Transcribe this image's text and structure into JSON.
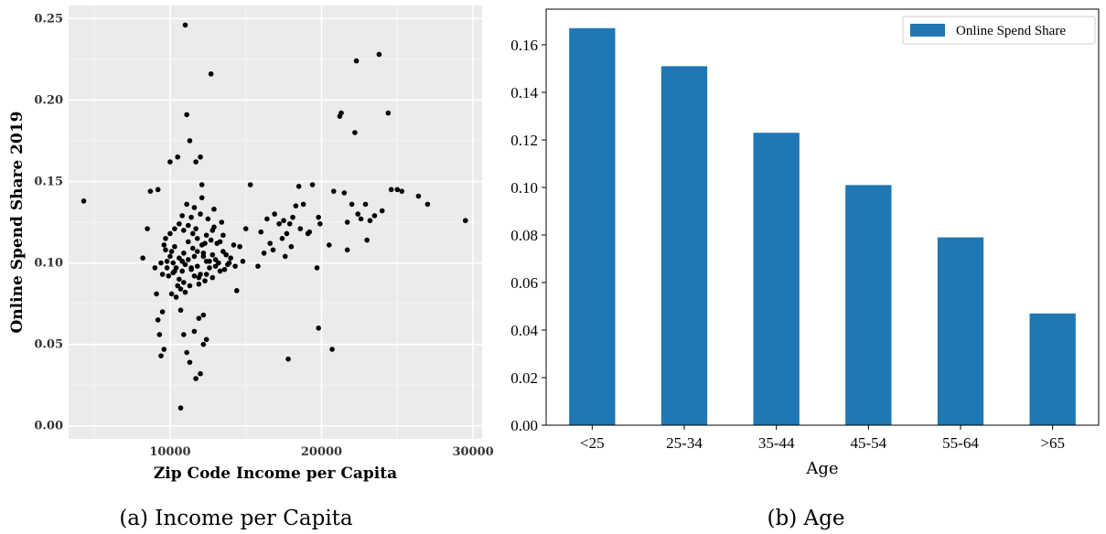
{
  "chart_data": [
    {
      "type": "scatter",
      "caption": "(a) Income per Capita",
      "xlabel": "Zip Code Income per Capita",
      "ylabel": "Online Spend Share 2019",
      "xlim": [
        3300,
        30600
      ],
      "ylim": [
        -0.008,
        0.258
      ],
      "xticks": [
        10000,
        20000,
        30000
      ],
      "yticks": [
        0.0,
        0.05,
        0.1,
        0.15,
        0.2,
        0.25
      ],
      "ytick_labels": [
        "0.00",
        "0.05",
        "0.10",
        "0.15",
        "0.20",
        "0.25"
      ],
      "grid": true,
      "point_color": "#000000",
      "panel_color": "#EBEBEB",
      "points": [
        [
          4300,
          0.138
        ],
        [
          8200,
          0.103
        ],
        [
          8500,
          0.121
        ],
        [
          8700,
          0.144
        ],
        [
          9200,
          0.145
        ],
        [
          9000,
          0.097
        ],
        [
          9100,
          0.081
        ],
        [
          9200,
          0.065
        ],
        [
          9300,
          0.056
        ],
        [
          9400,
          0.043
        ],
        [
          9500,
          0.07
        ],
        [
          9600,
          0.047
        ],
        [
          9400,
          0.1
        ],
        [
          9500,
          0.093
        ],
        [
          9600,
          0.111
        ],
        [
          9700,
          0.108
        ],
        [
          9800,
          0.097
        ],
        [
          9900,
          0.092
        ],
        [
          10000,
          0.104
        ],
        [
          10100,
          0.081
        ],
        [
          10200,
          0.094
        ],
        [
          10300,
          0.11
        ],
        [
          10400,
          0.079
        ],
        [
          10500,
          0.086
        ],
        [
          10000,
          0.162
        ],
        [
          10500,
          0.165
        ],
        [
          10700,
          0.071
        ],
        [
          10800,
          0.101
        ],
        [
          10800,
          0.129
        ],
        [
          10900,
          0.106
        ],
        [
          11000,
          0.246
        ],
        [
          11100,
          0.191
        ],
        [
          11200,
          0.123
        ],
        [
          11300,
          0.175
        ],
        [
          11400,
          0.097
        ],
        [
          11500,
          0.118
        ],
        [
          11600,
          0.134
        ],
        [
          11700,
          0.162
        ],
        [
          11800,
          0.107
        ],
        [
          11900,
          0.091
        ],
        [
          12000,
          0.165
        ],
        [
          12000,
          0.13
        ],
        [
          12100,
          0.148
        ],
        [
          12200,
          0.104
        ],
        [
          12300,
          0.112
        ],
        [
          12400,
          0.093
        ],
        [
          12600,
          0.101
        ],
        [
          12700,
          0.216
        ],
        [
          12800,
          0.12
        ],
        [
          12900,
          0.133
        ],
        [
          13000,
          0.098
        ],
        [
          13200,
          0.1
        ],
        [
          13400,
          0.125
        ],
        [
          13500,
          0.107
        ],
        [
          13600,
          0.096
        ],
        [
          13800,
          0.099
        ],
        [
          14000,
          0.103
        ],
        [
          14200,
          0.111
        ],
        [
          14400,
          0.083
        ],
        [
          14600,
          0.11
        ],
        [
          14800,
          0.101
        ],
        [
          15000,
          0.121
        ],
        [
          15300,
          0.148
        ],
        [
          15800,
          0.098
        ],
        [
          16000,
          0.119
        ],
        [
          16400,
          0.127
        ],
        [
          16600,
          0.112
        ],
        [
          16900,
          0.13
        ],
        [
          17200,
          0.124
        ],
        [
          17500,
          0.126
        ],
        [
          17700,
          0.118
        ],
        [
          17900,
          0.124
        ],
        [
          18100,
          0.128
        ],
        [
          18300,
          0.135
        ],
        [
          18500,
          0.147
        ],
        [
          18800,
          0.136
        ],
        [
          19100,
          0.118
        ],
        [
          19400,
          0.148
        ],
        [
          19700,
          0.097
        ],
        [
          19800,
          0.128
        ],
        [
          19800,
          0.06
        ],
        [
          19900,
          0.124
        ],
        [
          17800,
          0.041
        ],
        [
          12200,
          0.05
        ],
        [
          12000,
          0.032
        ],
        [
          11700,
          0.029
        ],
        [
          10700,
          0.011
        ],
        [
          10900,
          0.056
        ],
        [
          11100,
          0.045
        ],
        [
          11300,
          0.039
        ],
        [
          11600,
          0.058
        ],
        [
          11900,
          0.066
        ],
        [
          12200,
          0.068
        ],
        [
          12400,
          0.053
        ],
        [
          20500,
          0.111
        ],
        [
          20700,
          0.047
        ],
        [
          20800,
          0.144
        ],
        [
          21200,
          0.19
        ],
        [
          21300,
          0.192
        ],
        [
          21500,
          0.143
        ],
        [
          21700,
          0.125
        ],
        [
          21700,
          0.108
        ],
        [
          22000,
          0.136
        ],
        [
          22200,
          0.18
        ],
        [
          22300,
          0.224
        ],
        [
          22400,
          0.13
        ],
        [
          22600,
          0.127
        ],
        [
          22900,
          0.136
        ],
        [
          23000,
          0.114
        ],
        [
          23200,
          0.126
        ],
        [
          23500,
          0.129
        ],
        [
          23800,
          0.228
        ],
        [
          24000,
          0.132
        ],
        [
          24400,
          0.192
        ],
        [
          24600,
          0.145
        ],
        [
          25000,
          0.145
        ],
        [
          25300,
          0.144
        ],
        [
          26400,
          0.141
        ],
        [
          27000,
          0.136
        ],
        [
          29500,
          0.126
        ],
        [
          10200,
          0.1
        ],
        [
          10400,
          0.097
        ],
        [
          10600,
          0.103
        ],
        [
          10800,
          0.095
        ],
        [
          11000,
          0.099
        ],
        [
          11200,
          0.102
        ],
        [
          11400,
          0.096
        ],
        [
          11600,
          0.104
        ],
        [
          11800,
          0.098
        ],
        [
          12000,
          0.093
        ],
        [
          12200,
          0.106
        ],
        [
          12400,
          0.101
        ],
        [
          12600,
          0.097
        ],
        [
          12800,
          0.105
        ],
        [
          13000,
          0.102
        ],
        [
          9800,
          0.101
        ],
        [
          10100,
          0.107
        ],
        [
          10300,
          0.095
        ],
        [
          10600,
          0.09
        ],
        [
          10900,
          0.088
        ],
        [
          11200,
          0.113
        ],
        [
          11500,
          0.109
        ],
        [
          11800,
          0.115
        ],
        [
          12100,
          0.111
        ],
        [
          12400,
          0.117
        ],
        [
          12700,
          0.114
        ],
        [
          13100,
          0.112
        ],
        [
          13500,
          0.117
        ],
        [
          13900,
          0.1
        ],
        [
          14300,
          0.098
        ],
        [
          10700,
          0.084
        ],
        [
          11000,
          0.082
        ],
        [
          11300,
          0.086
        ],
        [
          11600,
          0.092
        ],
        [
          11900,
          0.087
        ],
        [
          12300,
          0.089
        ],
        [
          12800,
          0.091
        ],
        [
          13300,
          0.095
        ],
        [
          9700,
          0.115
        ],
        [
          10000,
          0.118
        ],
        [
          10300,
          0.121
        ],
        [
          10600,
          0.124
        ],
        [
          10900,
          0.12
        ],
        [
          11100,
          0.136
        ],
        [
          11400,
          0.128
        ],
        [
          11700,
          0.121
        ],
        [
          12100,
          0.14
        ],
        [
          12500,
          0.127
        ],
        [
          12900,
          0.122
        ],
        [
          13300,
          0.113
        ],
        [
          13700,
          0.105
        ],
        [
          16200,
          0.106
        ],
        [
          16800,
          0.108
        ],
        [
          17400,
          0.115
        ],
        [
          18000,
          0.11
        ],
        [
          18600,
          0.121
        ],
        [
          19200,
          0.119
        ],
        [
          17600,
          0.104
        ]
      ]
    },
    {
      "type": "bar",
      "caption": "(b) Age",
      "categories": [
        "<25",
        "25-34",
        "35-44",
        "45-54",
        "55-64",
        ">65"
      ],
      "series": [
        {
          "name": "Online Spend Share",
          "values": [
            0.167,
            0.151,
            0.123,
            0.101,
            0.079,
            0.047
          ],
          "color": "#1F77B4"
        }
      ],
      "xlabel": "Age",
      "ylabel": "",
      "ylim": [
        0,
        0.175
      ],
      "yticks": [
        0.0,
        0.02,
        0.04,
        0.06,
        0.08,
        0.1,
        0.12,
        0.14,
        0.16
      ],
      "ytick_labels": [
        "0.00",
        "0.02",
        "0.04",
        "0.06",
        "0.08",
        "0.10",
        "0.12",
        "0.14",
        "0.16"
      ],
      "grid": false,
      "legend": "top-right"
    }
  ]
}
